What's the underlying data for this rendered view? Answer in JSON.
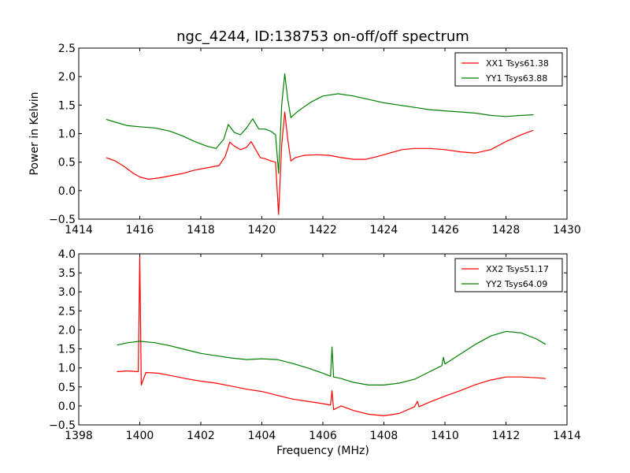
{
  "figure": {
    "title": "ngc_4244, ID:138753 on-off/off spectrum"
  },
  "colors": {
    "xx": "#ff0000",
    "yy": "#008000",
    "axis": "#000000",
    "background": "#ffffff"
  },
  "chart_data": [
    {
      "type": "line",
      "title": "ngc_4244, ID:138753 on-off/off spectrum",
      "xlabel": "",
      "ylabel": "Power in Kelvin",
      "xlim": [
        1414,
        1430
      ],
      "ylim": [
        -0.5,
        2.5
      ],
      "xticks": [
        1414,
        1416,
        1418,
        1420,
        1422,
        1424,
        1426,
        1428,
        1430
      ],
      "yticks": [
        -0.5,
        0.0,
        0.5,
        1.0,
        1.5,
        2.0,
        2.5
      ],
      "xtick_labels": [
        "1414",
        "1416",
        "1418",
        "1420",
        "1422",
        "1424",
        "1426",
        "1428",
        "1430"
      ],
      "ytick_labels": [
        "−0.5",
        "0.0",
        "0.5",
        "1.0",
        "1.5",
        "2.0",
        "2.5"
      ],
      "grid": false,
      "legend": "top-right",
      "series": [
        {
          "name": "XX1 Tsys61.38",
          "color": "#ff0000",
          "points": [
            [
              1414.9,
              0.58
            ],
            [
              1415.2,
              0.52
            ],
            [
              1415.5,
              0.42
            ],
            [
              1415.8,
              0.3
            ],
            [
              1416.0,
              0.24
            ],
            [
              1416.3,
              0.2
            ],
            [
              1416.6,
              0.22
            ],
            [
              1417.0,
              0.26
            ],
            [
              1417.4,
              0.3
            ],
            [
              1417.8,
              0.36
            ],
            [
              1418.2,
              0.4
            ],
            [
              1418.6,
              0.44
            ],
            [
              1418.8,
              0.6
            ],
            [
              1418.95,
              0.85
            ],
            [
              1419.1,
              0.78
            ],
            [
              1419.3,
              0.72
            ],
            [
              1419.5,
              0.76
            ],
            [
              1419.65,
              0.86
            ],
            [
              1419.8,
              0.72
            ],
            [
              1419.95,
              0.58
            ],
            [
              1420.1,
              0.56
            ],
            [
              1420.3,
              0.52
            ],
            [
              1420.45,
              0.5
            ],
            [
              1420.55,
              -0.42
            ],
            [
              1420.65,
              0.8
            ],
            [
              1420.75,
              1.38
            ],
            [
              1420.85,
              0.9
            ],
            [
              1420.95,
              0.52
            ],
            [
              1421.1,
              0.58
            ],
            [
              1421.4,
              0.62
            ],
            [
              1421.8,
              0.63
            ],
            [
              1422.2,
              0.62
            ],
            [
              1422.6,
              0.58
            ],
            [
              1423.0,
              0.55
            ],
            [
              1423.4,
              0.55
            ],
            [
              1423.8,
              0.6
            ],
            [
              1424.2,
              0.66
            ],
            [
              1424.6,
              0.72
            ],
            [
              1425.0,
              0.74
            ],
            [
              1425.5,
              0.74
            ],
            [
              1426.0,
              0.72
            ],
            [
              1426.5,
              0.68
            ],
            [
              1427.0,
              0.66
            ],
            [
              1427.5,
              0.72
            ],
            [
              1428.0,
              0.86
            ],
            [
              1428.5,
              0.98
            ],
            [
              1428.9,
              1.06
            ]
          ]
        },
        {
          "name": "YY1 Tsys63.88",
          "color": "#008000",
          "points": [
            [
              1414.9,
              1.25
            ],
            [
              1415.2,
              1.2
            ],
            [
              1415.6,
              1.14
            ],
            [
              1416.0,
              1.12
            ],
            [
              1416.5,
              1.1
            ],
            [
              1417.0,
              1.04
            ],
            [
              1417.4,
              0.96
            ],
            [
              1417.8,
              0.86
            ],
            [
              1418.2,
              0.78
            ],
            [
              1418.5,
              0.74
            ],
            [
              1418.75,
              0.9
            ],
            [
              1418.9,
              1.16
            ],
            [
              1419.1,
              1.02
            ],
            [
              1419.3,
              0.98
            ],
            [
              1419.5,
              1.1
            ],
            [
              1419.7,
              1.26
            ],
            [
              1419.9,
              1.08
            ],
            [
              1420.1,
              1.08
            ],
            [
              1420.3,
              1.04
            ],
            [
              1420.45,
              0.98
            ],
            [
              1420.55,
              0.3
            ],
            [
              1420.65,
              1.5
            ],
            [
              1420.75,
              2.05
            ],
            [
              1420.85,
              1.6
            ],
            [
              1420.95,
              1.28
            ],
            [
              1421.2,
              1.4
            ],
            [
              1421.6,
              1.55
            ],
            [
              1422.0,
              1.66
            ],
            [
              1422.5,
              1.7
            ],
            [
              1423.0,
              1.66
            ],
            [
              1423.5,
              1.6
            ],
            [
              1424.0,
              1.54
            ],
            [
              1424.5,
              1.5
            ],
            [
              1425.0,
              1.46
            ],
            [
              1425.5,
              1.42
            ],
            [
              1426.0,
              1.4
            ],
            [
              1426.5,
              1.38
            ],
            [
              1427.0,
              1.36
            ],
            [
              1427.5,
              1.32
            ],
            [
              1428.0,
              1.3
            ],
            [
              1428.5,
              1.32
            ],
            [
              1428.9,
              1.33
            ]
          ]
        }
      ]
    },
    {
      "type": "line",
      "title": "",
      "xlabel": "Frequency (MHz)",
      "ylabel": "",
      "xlim": [
        1398,
        1414
      ],
      "ylim": [
        -0.5,
        4.0
      ],
      "xticks": [
        1398,
        1400,
        1402,
        1404,
        1406,
        1408,
        1410,
        1412,
        1414
      ],
      "yticks": [
        -0.5,
        0.0,
        0.5,
        1.0,
        1.5,
        2.0,
        2.5,
        3.0,
        3.5,
        4.0
      ],
      "xtick_labels": [
        "1398",
        "1400",
        "1402",
        "1404",
        "1406",
        "1408",
        "1410",
        "1412",
        "1414"
      ],
      "ytick_labels": [
        "−0.5",
        "0.0",
        "0.5",
        "1.0",
        "1.5",
        "2.0",
        "2.5",
        "3.0",
        "3.5",
        "4.0"
      ],
      "grid": false,
      "legend": "top-right",
      "series": [
        {
          "name": "XX2 Tsys51.17",
          "color": "#ff0000",
          "points": [
            [
              1399.25,
              0.9
            ],
            [
              1399.6,
              0.92
            ],
            [
              1399.95,
              0.9
            ],
            [
              1400.0,
              3.95
            ],
            [
              1400.05,
              0.55
            ],
            [
              1400.2,
              0.88
            ],
            [
              1400.6,
              0.86
            ],
            [
              1401.0,
              0.8
            ],
            [
              1401.5,
              0.72
            ],
            [
              1402.0,
              0.65
            ],
            [
              1402.5,
              0.6
            ],
            [
              1403.0,
              0.52
            ],
            [
              1403.5,
              0.44
            ],
            [
              1404.0,
              0.38
            ],
            [
              1404.5,
              0.28
            ],
            [
              1405.0,
              0.18
            ],
            [
              1405.5,
              0.12
            ],
            [
              1406.0,
              0.06
            ],
            [
              1406.25,
              0.02
            ],
            [
              1406.3,
              0.4
            ],
            [
              1406.35,
              -0.1
            ],
            [
              1406.6,
              0.0
            ],
            [
              1407.0,
              -0.12
            ],
            [
              1407.5,
              -0.22
            ],
            [
              1408.0,
              -0.26
            ],
            [
              1408.5,
              -0.2
            ],
            [
              1409.0,
              -0.02
            ],
            [
              1409.1,
              0.12
            ],
            [
              1409.15,
              -0.02
            ],
            [
              1409.5,
              0.1
            ],
            [
              1410.0,
              0.26
            ],
            [
              1410.5,
              0.4
            ],
            [
              1411.0,
              0.56
            ],
            [
              1411.5,
              0.68
            ],
            [
              1412.0,
              0.76
            ],
            [
              1412.5,
              0.76
            ],
            [
              1413.0,
              0.74
            ],
            [
              1413.3,
              0.72
            ]
          ]
        },
        {
          "name": "YY2 Tsys64.09",
          "color": "#008000",
          "points": [
            [
              1399.25,
              1.6
            ],
            [
              1399.6,
              1.66
            ],
            [
              1400.0,
              1.7
            ],
            [
              1400.5,
              1.66
            ],
            [
              1401.0,
              1.58
            ],
            [
              1401.5,
              1.48
            ],
            [
              1402.0,
              1.38
            ],
            [
              1402.5,
              1.32
            ],
            [
              1403.0,
              1.26
            ],
            [
              1403.5,
              1.22
            ],
            [
              1404.0,
              1.24
            ],
            [
              1404.5,
              1.22
            ],
            [
              1405.0,
              1.12
            ],
            [
              1405.5,
              1.0
            ],
            [
              1406.0,
              0.86
            ],
            [
              1406.25,
              0.78
            ],
            [
              1406.3,
              1.55
            ],
            [
              1406.35,
              0.76
            ],
            [
              1406.6,
              0.72
            ],
            [
              1407.0,
              0.62
            ],
            [
              1407.5,
              0.55
            ],
            [
              1408.0,
              0.55
            ],
            [
              1408.5,
              0.6
            ],
            [
              1409.0,
              0.7
            ],
            [
              1409.5,
              0.9
            ],
            [
              1409.9,
              1.06
            ],
            [
              1409.95,
              1.28
            ],
            [
              1410.0,
              1.1
            ],
            [
              1410.5,
              1.36
            ],
            [
              1411.0,
              1.62
            ],
            [
              1411.5,
              1.84
            ],
            [
              1412.0,
              1.96
            ],
            [
              1412.5,
              1.92
            ],
            [
              1413.0,
              1.76
            ],
            [
              1413.3,
              1.62
            ]
          ]
        }
      ]
    }
  ]
}
